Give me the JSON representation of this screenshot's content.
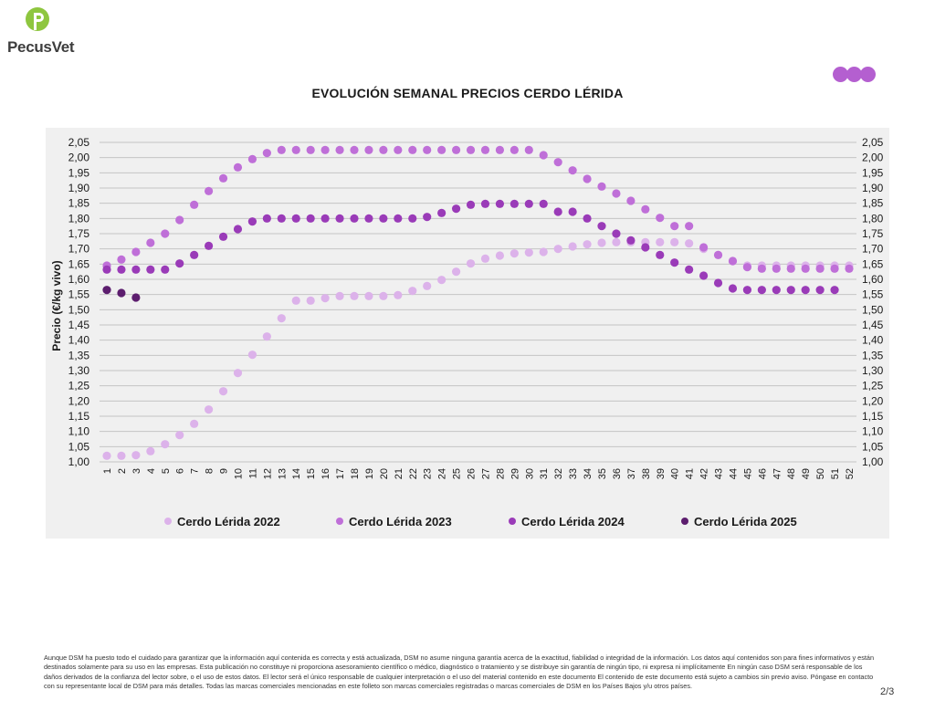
{
  "brand": {
    "name": "PecusVet",
    "accent": "#8ec63f"
  },
  "title": "EVOLUCIÓN SEMANAL PRECIOS CERDO LÉRIDA",
  "page_number": "2/3",
  "disclaimer": "Aunque DSM ha puesto todo el cuidado para garantizar que la información aquí contenida es correcta y está actualizada, DSM no asume ninguna garantía acerca de la exactitud, fiabilidad o integridad de la información. Los datos aquí contenidos son para fines informativos y están destinados solamente para su uso en las empresas. Esta publicación no constituye ni proporciona asesoramiento científico o médico, diagnóstico o tratamiento y se distribuye sin garantía de ningún tipo, ni expresa ni implícitamente En ningún caso DSM será responsable de los daños derivados de la confianza del lector sobre, o el uso de estos datos. El lector será el único responsable de cualquier interpretación o el uso del material contenido en este documento El contenido de este documento está sujeto a cambios sin previo aviso. Póngase en contacto con su representante local de DSM para más detalles. Todas las marcas comerciales mencionadas en este folleto son marcas comerciales registradas o marcas comerciales de DSM en los Países Bajos y/u otros países.",
  "chart_data": {
    "type": "scatter",
    "title": "EVOLUCIÓN SEMANAL PRECIOS CERDO LÉRIDA",
    "xlabel": "",
    "ylabel": "Precio (€/kg vivo)",
    "ylim": [
      1.0,
      2.05
    ],
    "ytick_labels": [
      "1,00",
      "1,05",
      "1,10",
      "1,15",
      "1,20",
      "1,25",
      "1,30",
      "1,35",
      "1,40",
      "1,45",
      "1,50",
      "1,55",
      "1,60",
      "1,65",
      "1,70",
      "1,75",
      "1,80",
      "1,85",
      "1,90",
      "1,95",
      "2,00",
      "2,05"
    ],
    "categories": [
      "1",
      "2",
      "3",
      "4",
      "5",
      "6",
      "7",
      "8",
      "9",
      "10",
      "11",
      "12",
      "13",
      "14",
      "15",
      "16",
      "17",
      "18",
      "19",
      "20",
      "21",
      "22",
      "23",
      "24",
      "25",
      "26",
      "27",
      "28",
      "29",
      "30",
      "31",
      "32",
      "33",
      "34",
      "35",
      "36",
      "37",
      "38",
      "39",
      "40",
      "41",
      "42",
      "43",
      "44",
      "45",
      "46",
      "47",
      "48",
      "49",
      "50",
      "51",
      "52"
    ],
    "grid": true,
    "legend_position": "bottom",
    "series": [
      {
        "name": "Cerdo Lérida 2022",
        "color": "#dcb2ea",
        "values": [
          1.02,
          1.02,
          1.022,
          1.035,
          1.058,
          1.088,
          1.125,
          1.172,
          1.232,
          1.292,
          1.352,
          1.412,
          1.472,
          1.53,
          1.53,
          1.538,
          1.545,
          1.545,
          1.545,
          1.545,
          1.548,
          1.562,
          1.578,
          1.598,
          1.625,
          1.652,
          1.668,
          1.678,
          1.685,
          1.688,
          1.69,
          1.7,
          1.708,
          1.715,
          1.72,
          1.722,
          1.722,
          1.722,
          1.722,
          1.722,
          1.718,
          1.7,
          1.68,
          1.66,
          1.645,
          1.645,
          1.645,
          1.645,
          1.645,
          1.645,
          1.645,
          1.645
        ]
      },
      {
        "name": "Cerdo Lérida 2023",
        "color": "#bf6fd8",
        "values": [
          1.645,
          1.665,
          1.69,
          1.72,
          1.75,
          1.795,
          1.845,
          1.89,
          1.932,
          1.968,
          1.995,
          2.015,
          2.025,
          2.025,
          2.025,
          2.025,
          2.025,
          2.025,
          2.025,
          2.025,
          2.025,
          2.025,
          2.025,
          2.025,
          2.025,
          2.025,
          2.025,
          2.025,
          2.025,
          2.025,
          2.008,
          1.985,
          1.958,
          1.93,
          1.905,
          1.882,
          1.858,
          1.83,
          1.802,
          1.775,
          1.775,
          1.705,
          1.68,
          1.66,
          1.64,
          1.635,
          1.635,
          1.635,
          1.635,
          1.635,
          1.635,
          1.635
        ]
      },
      {
        "name": "Cerdo Lérida 2024",
        "color": "#9a3bb8",
        "values": [
          1.632,
          1.632,
          1.632,
          1.632,
          1.632,
          1.652,
          1.68,
          1.71,
          1.74,
          1.765,
          1.79,
          1.8,
          1.8,
          1.8,
          1.8,
          1.8,
          1.8,
          1.8,
          1.8,
          1.8,
          1.8,
          1.8,
          1.805,
          1.818,
          1.832,
          1.845,
          1.848,
          1.848,
          1.848,
          1.848,
          1.848,
          1.822,
          1.822,
          1.8,
          1.775,
          1.75,
          1.728,
          1.705,
          1.68,
          1.655,
          1.632,
          1.612,
          1.588,
          1.57,
          1.565,
          1.565,
          1.565,
          1.565,
          1.565,
          1.565,
          1.565
        ]
      },
      {
        "name": "Cerdo Lérida 2025",
        "color": "#5c1d6e",
        "values": [
          1.565,
          1.555,
          1.54
        ]
      }
    ]
  }
}
